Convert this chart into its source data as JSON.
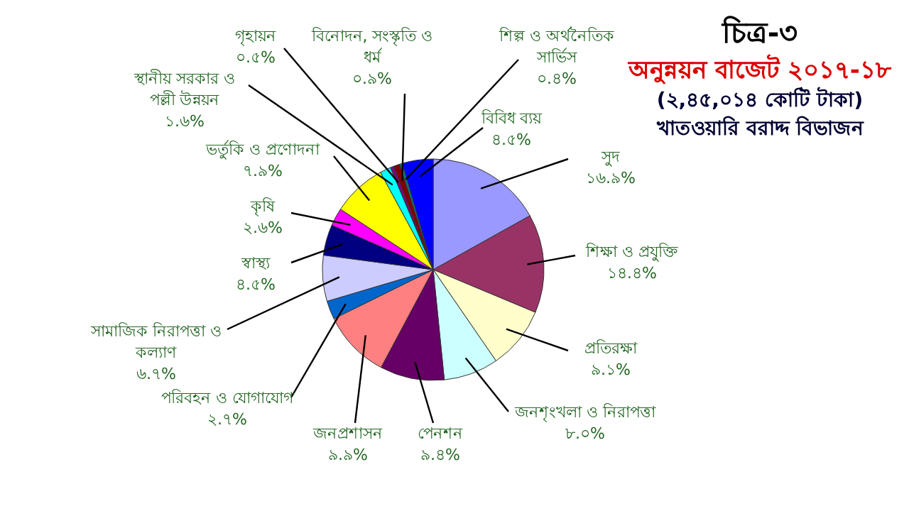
{
  "chart_data": {
    "type": "pie",
    "title": "চিত্র-৩",
    "subtitle": "অনুন্নয়ন বাজেট ২০১৭-১৮",
    "annotations": [
      "(২,৪৫,০১৪ কোটি টাকা)",
      "খাতওয়ারি বরাদ্দ বিভাজন"
    ],
    "categories": [
      "সুদ",
      "শিক্ষা ও প্রযুক্তি",
      "প্রতিরক্ষা",
      "জনশৃংখলা ও নিরাপত্তা",
      "পেনশন",
      "জনপ্রশাসন",
      "পরিবহন ও যোগাযোগ",
      "সামাজিক নিরাপত্তা ও কল্যাণ",
      "স্বাস্থ্য",
      "কৃষি",
      "ভর্তুকি ও প্রণোদনা",
      "স্থানীয় সরকার ও পল্লী উন্নয়ন",
      "গৃহায়ন",
      "বিনোদন, সংস্কৃতি ও ধর্ম",
      "শিল্প ও অর্থনৈতিক সার্ভিস",
      "বিবিধ ব্যয়"
    ],
    "values": [
      16.9,
      14.4,
      9.1,
      8.0,
      9.4,
      9.9,
      2.7,
      6.7,
      4.5,
      2.6,
      7.9,
      1.6,
      0.5,
      0.9,
      0.4,
      4.5
    ],
    "value_labels": [
      "১৬.৯%",
      "১৪.৪%",
      "৯.১%",
      "৮.০%",
      "৯.৪%",
      "৯.৯%",
      "২.৭%",
      "৬.৭%",
      "৪.৫%",
      "২.৬%",
      "৭.৯%",
      "১.৬%",
      "০.৫%",
      "০.৯%",
      "০.৪%",
      "৪.৫%"
    ],
    "colors": [
      "#9999ff",
      "#993366",
      "#ffffcc",
      "#ccffff",
      "#660066",
      "#ff8080",
      "#0066cc",
      "#ccccff",
      "#000080",
      "#ff00ff",
      "#ffff00",
      "#00ffff",
      "#800080",
      "#800000",
      "#008080",
      "#0000ff"
    ]
  }
}
